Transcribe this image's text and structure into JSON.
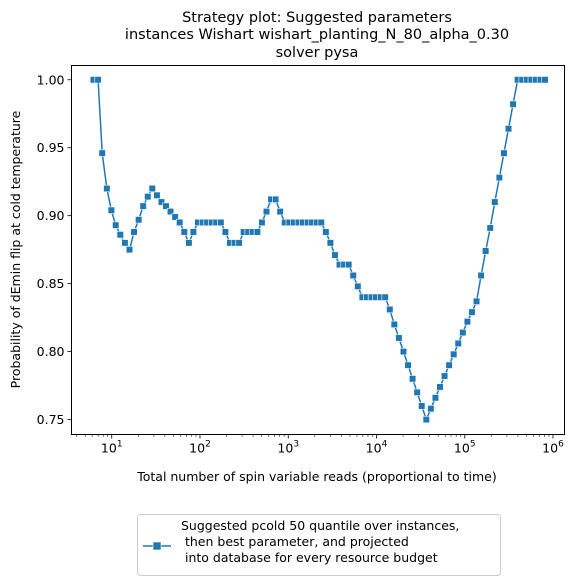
{
  "chart_data": {
    "type": "line",
    "title": [
      "Strategy plot: Suggested parameters",
      "instances Wishart wishart_planting_N_80_alpha_0.30",
      "solver pysa"
    ],
    "xlabel": "Total number of spin variable reads (proportional to time)",
    "ylabel": "Probability of dEmin flip at cold temperature",
    "xscale": "log",
    "xlim": [
      3.5,
      1350000
    ],
    "ylim": [
      0.739,
      1.0105
    ],
    "x_ticks": [
      {
        "value": 10,
        "base": "10",
        "exp": "1"
      },
      {
        "value": 100,
        "base": "10",
        "exp": "2"
      },
      {
        "value": 1000,
        "base": "10",
        "exp": "3"
      },
      {
        "value": 10000,
        "base": "10",
        "exp": "4"
      },
      {
        "value": 100000,
        "base": "10",
        "exp": "5"
      },
      {
        "value": 1000000,
        "base": "10",
        "exp": "6"
      }
    ],
    "y_ticks": [
      {
        "value": 0.75,
        "label": "0.75"
      },
      {
        "value": 0.8,
        "label": "0.80"
      },
      {
        "value": 0.85,
        "label": "0.85"
      },
      {
        "value": 0.9,
        "label": "0.90"
      },
      {
        "value": 0.95,
        "label": "0.95"
      },
      {
        "value": 1.0,
        "label": "1.00"
      }
    ],
    "grid": false,
    "legend_position": "bottom-center-outside",
    "series": [
      {
        "name": "Suggested pcold 50 quantile over instances,\n then best parameter, and projected\n into database for every resource budget",
        "color": "#1f77b4",
        "marker": "square",
        "x": [
          6.2,
          7.0,
          7.8,
          8.8,
          9.9,
          11.1,
          12.5,
          14.1,
          15.9,
          17.9,
          20.2,
          22.7,
          25.6,
          28.8,
          32.5,
          36.6,
          41.2,
          46.4,
          52.3,
          58.9,
          66.4,
          74.8,
          84.2,
          94.9,
          106.9,
          120.4,
          135.7,
          152.8,
          172.2,
          194.0,
          218.5,
          246.2,
          277.3,
          312.4,
          351.9,
          396.5,
          446.6,
          503.1,
          566.8,
          638.5,
          719.3,
          810.3,
          912.8,
          1028,
          1158,
          1305,
          1470,
          1656,
          1865,
          2101,
          2367,
          2667,
          3004,
          3384,
          3812,
          4295,
          4838,
          5450,
          6140,
          6917,
          7792,
          8778,
          9889,
          11140,
          12550,
          14140,
          15930,
          17940,
          20210,
          22770,
          25650,
          28900,
          32550,
          36670,
          41310,
          46540,
          52430,
          59060,
          66540,
          74960,
          84440,
          95130,
          107200,
          120700,
          136000,
          153200,
          172600,
          194400,
          219000,
          246800,
          278000,
          313200,
          352800,
          397500,
          447800,
          504400,
          568200,
          640100,
          721100,
          812400
        ],
        "y": [
          1.0,
          1.0,
          0.946,
          0.92,
          0.904,
          0.893,
          0.886,
          0.88,
          0.875,
          0.888,
          0.897,
          0.907,
          0.914,
          0.92,
          0.915,
          0.91,
          0.907,
          0.903,
          0.899,
          0.895,
          0.888,
          0.88,
          0.888,
          0.895,
          0.895,
          0.895,
          0.895,
          0.895,
          0.895,
          0.888,
          0.88,
          0.88,
          0.88,
          0.888,
          0.888,
          0.888,
          0.888,
          0.895,
          0.903,
          0.912,
          0.912,
          0.903,
          0.895,
          0.895,
          0.895,
          0.895,
          0.895,
          0.895,
          0.895,
          0.895,
          0.895,
          0.888,
          0.88,
          0.871,
          0.864,
          0.864,
          0.864,
          0.856,
          0.848,
          0.84,
          0.84,
          0.84,
          0.84,
          0.84,
          0.84,
          0.831,
          0.82,
          0.81,
          0.8,
          0.79,
          0.78,
          0.77,
          0.76,
          0.75,
          0.758,
          0.766,
          0.774,
          0.782,
          0.79,
          0.798,
          0.806,
          0.814,
          0.822,
          0.829,
          0.837,
          0.856,
          0.874,
          0.891,
          0.91,
          0.928,
          0.946,
          0.964,
          0.982,
          1.0,
          1.0,
          1.0,
          1.0,
          1.0,
          1.0,
          1.0
        ]
      }
    ]
  }
}
